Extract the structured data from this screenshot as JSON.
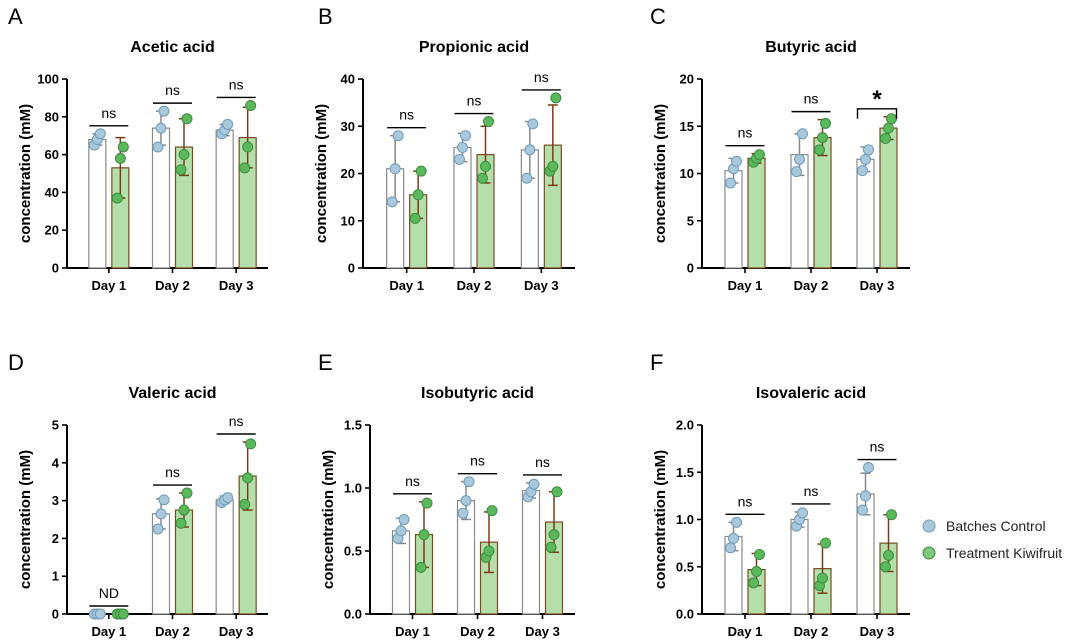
{
  "legend": {
    "placement": "right",
    "items": [
      {
        "label": "Batches Control",
        "color": "#a9c8dc"
      },
      {
        "label": "Treatment Kiwifruit",
        "color": "#7ec87a"
      }
    ]
  },
  "colors": {
    "control_bar_fill": "#ffffff",
    "control_bar_edge": "#8a8a8a",
    "control_point": "#a9c8dc",
    "treatment_bar_fill": "#b5dfaa",
    "treatment_bar_edge": "#7a4a22",
    "treatment_point": "#5cb85c",
    "axis": "#000000",
    "error_control": "#888888",
    "error_treatment": "#7a3b12"
  },
  "chart_data": [
    {
      "panel_letter": "A",
      "type": "bar",
      "title": "Acetic acid",
      "ylabel": "concentration (mM)",
      "xlabel": "",
      "ylim": [
        0,
        100
      ],
      "yticks": [
        0,
        20,
        40,
        60,
        80,
        100
      ],
      "ytick_labels": [
        "0",
        "20",
        "40",
        "60",
        "80",
        "100"
      ],
      "categories": [
        "Day 1",
        "Day 2",
        "Day 3"
      ],
      "series": [
        {
          "name": "Batches Control",
          "values": [
            68,
            74,
            73
          ],
          "err": [
            3,
            9,
            3
          ],
          "points": [
            [
              65,
              68,
              71
            ],
            [
              64,
              74,
              83
            ],
            [
              71,
              73,
              76
            ]
          ]
        },
        {
          "name": "Treatment Kiwifruit",
          "values": [
            53,
            64,
            69
          ],
          "err": [
            16,
            15,
            16
          ],
          "points": [
            [
              37,
              58,
              64
            ],
            [
              52,
              60,
              79
            ],
            [
              53,
              64,
              86
            ]
          ]
        }
      ],
      "annotations": [
        "ns",
        "ns",
        "ns"
      ]
    },
    {
      "panel_letter": "B",
      "type": "bar",
      "title": "Propionic acid",
      "ylabel": "concentration (mM)",
      "xlabel": "",
      "ylim": [
        0,
        40
      ],
      "yticks": [
        0,
        10,
        20,
        30,
        40
      ],
      "ytick_labels": [
        "0",
        "10",
        "20",
        "30",
        "40"
      ],
      "categories": [
        "Day 1",
        "Day 2",
        "Day 3"
      ],
      "series": [
        {
          "name": "Batches Control",
          "values": [
            21,
            25.5,
            25
          ],
          "err": [
            7,
            3,
            6
          ],
          "points": [
            [
              14,
              21,
              28
            ],
            [
              23,
              25.5,
              28
            ],
            [
              19,
              25,
              30.5
            ]
          ]
        },
        {
          "name": "Treatment Kiwifruit",
          "values": [
            15.5,
            24,
            26
          ],
          "err": [
            5,
            6,
            8.5
          ],
          "points": [
            [
              10.5,
              15.5,
              20.5
            ],
            [
              19,
              21.5,
              31
            ],
            [
              20.5,
              21.5,
              36
            ]
          ]
        }
      ],
      "annotations": [
        "ns",
        "ns",
        "ns"
      ]
    },
    {
      "panel_letter": "C",
      "type": "bar",
      "title": "Butyric acid",
      "ylabel": "concentration (mM)",
      "xlabel": "",
      "ylim": [
        0,
        20
      ],
      "yticks": [
        0,
        5,
        10,
        15,
        20
      ],
      "ytick_labels": [
        "0",
        "5",
        "10",
        "15",
        "20"
      ],
      "categories": [
        "Day 1",
        "Day 2",
        "Day 3"
      ],
      "series": [
        {
          "name": "Batches Control",
          "values": [
            10.3,
            12,
            11.5
          ],
          "err": [
            1.3,
            2.2,
            1.3
          ],
          "points": [
            [
              9,
              10.5,
              11.3
            ],
            [
              10.2,
              11.5,
              14.2
            ],
            [
              10.3,
              11.5,
              12.5
            ]
          ]
        },
        {
          "name": "Treatment Kiwifruit",
          "values": [
            11.6,
            13.8,
            14.8
          ],
          "err": [
            0.5,
            1.9,
            1.2
          ],
          "points": [
            [
              11.2,
              11.6,
              12
            ],
            [
              12.5,
              13.8,
              15.3
            ],
            [
              13.7,
              14.8,
              15.8
            ]
          ]
        }
      ],
      "annotations": [
        "ns",
        "ns",
        "*"
      ]
    },
    {
      "panel_letter": "D",
      "type": "bar",
      "title": "Valeric acid",
      "ylabel": "concentration (mM)",
      "xlabel": "",
      "ylim": [
        0,
        5
      ],
      "yticks": [
        0,
        1,
        2,
        3,
        4,
        5
      ],
      "ytick_labels": [
        "0",
        "1",
        "2",
        "3",
        "4",
        "5"
      ],
      "categories": [
        "Day 1",
        "Day 2",
        "Day 3"
      ],
      "series": [
        {
          "name": "Batches Control",
          "values": [
            0,
            2.65,
            3.02
          ],
          "err": [
            0,
            0.4,
            0.1
          ],
          "points": [
            [
              0,
              0,
              0
            ],
            [
              2.25,
              2.65,
              3.02
            ],
            [
              2.95,
              3.02,
              3.08
            ]
          ]
        },
        {
          "name": "Treatment Kiwifruit",
          "values": [
            0,
            2.75,
            3.65
          ],
          "err": [
            0,
            0.45,
            0.9
          ],
          "points": [
            [
              0,
              0,
              0
            ],
            [
              2.4,
              2.75,
              3.2
            ],
            [
              2.9,
              3.6,
              4.5
            ]
          ]
        }
      ],
      "annotations": [
        "ND",
        "ns",
        "ns"
      ]
    },
    {
      "panel_letter": "E",
      "type": "bar",
      "title": "Isobutyric acid",
      "ylabel": "concentration (mM)",
      "xlabel": "",
      "ylim": [
        0,
        1.5
      ],
      "yticks": [
        0,
        0.5,
        1.0,
        1.5
      ],
      "ytick_labels": [
        "0.0",
        "0.5",
        "1.0",
        "1.5"
      ],
      "categories": [
        "Day 1",
        "Day 2",
        "Day 3"
      ],
      "series": [
        {
          "name": "Batches Control",
          "values": [
            0.66,
            0.9,
            0.98
          ],
          "err": [
            0.1,
            0.15,
            0.06
          ],
          "points": [
            [
              0.6,
              0.66,
              0.75
            ],
            [
              0.8,
              0.9,
              1.05
            ],
            [
              0.93,
              0.97,
              1.03
            ]
          ]
        },
        {
          "name": "Treatment Kiwifruit",
          "values": [
            0.63,
            0.57,
            0.73
          ],
          "err": [
            0.26,
            0.24,
            0.24
          ],
          "points": [
            [
              0.37,
              0.63,
              0.88
            ],
            [
              0.45,
              0.5,
              0.82
            ],
            [
              0.53,
              0.63,
              0.97
            ]
          ]
        }
      ],
      "annotations": [
        "ns",
        "ns",
        "ns"
      ]
    },
    {
      "panel_letter": "F",
      "type": "bar",
      "title": "Isovaleric acid",
      "ylabel": "concentration (mM)",
      "xlabel": "",
      "ylim": [
        0,
        2.0
      ],
      "yticks": [
        0,
        0.5,
        1.0,
        1.5,
        2.0
      ],
      "ytick_labels": [
        "0.0",
        "0.5",
        "1.0",
        "1.5",
        "2.0"
      ],
      "categories": [
        "Day 1",
        "Day 2",
        "Day 3"
      ],
      "series": [
        {
          "name": "Batches Control",
          "values": [
            0.82,
            1.0,
            1.27
          ],
          "err": [
            0.15,
            0.08,
            0.22
          ],
          "points": [
            [
              0.7,
              0.8,
              0.97
            ],
            [
              0.93,
              1.0,
              1.07
            ],
            [
              1.1,
              1.25,
              1.55
            ]
          ]
        },
        {
          "name": "Treatment Kiwifruit",
          "values": [
            0.47,
            0.48,
            0.75
          ],
          "err": [
            0.17,
            0.26,
            0.3
          ],
          "points": [
            [
              0.33,
              0.45,
              0.63
            ],
            [
              0.3,
              0.38,
              0.75
            ],
            [
              0.5,
              0.62,
              1.05
            ]
          ]
        }
      ],
      "annotations": [
        "ns",
        "ns",
        "ns"
      ]
    }
  ]
}
